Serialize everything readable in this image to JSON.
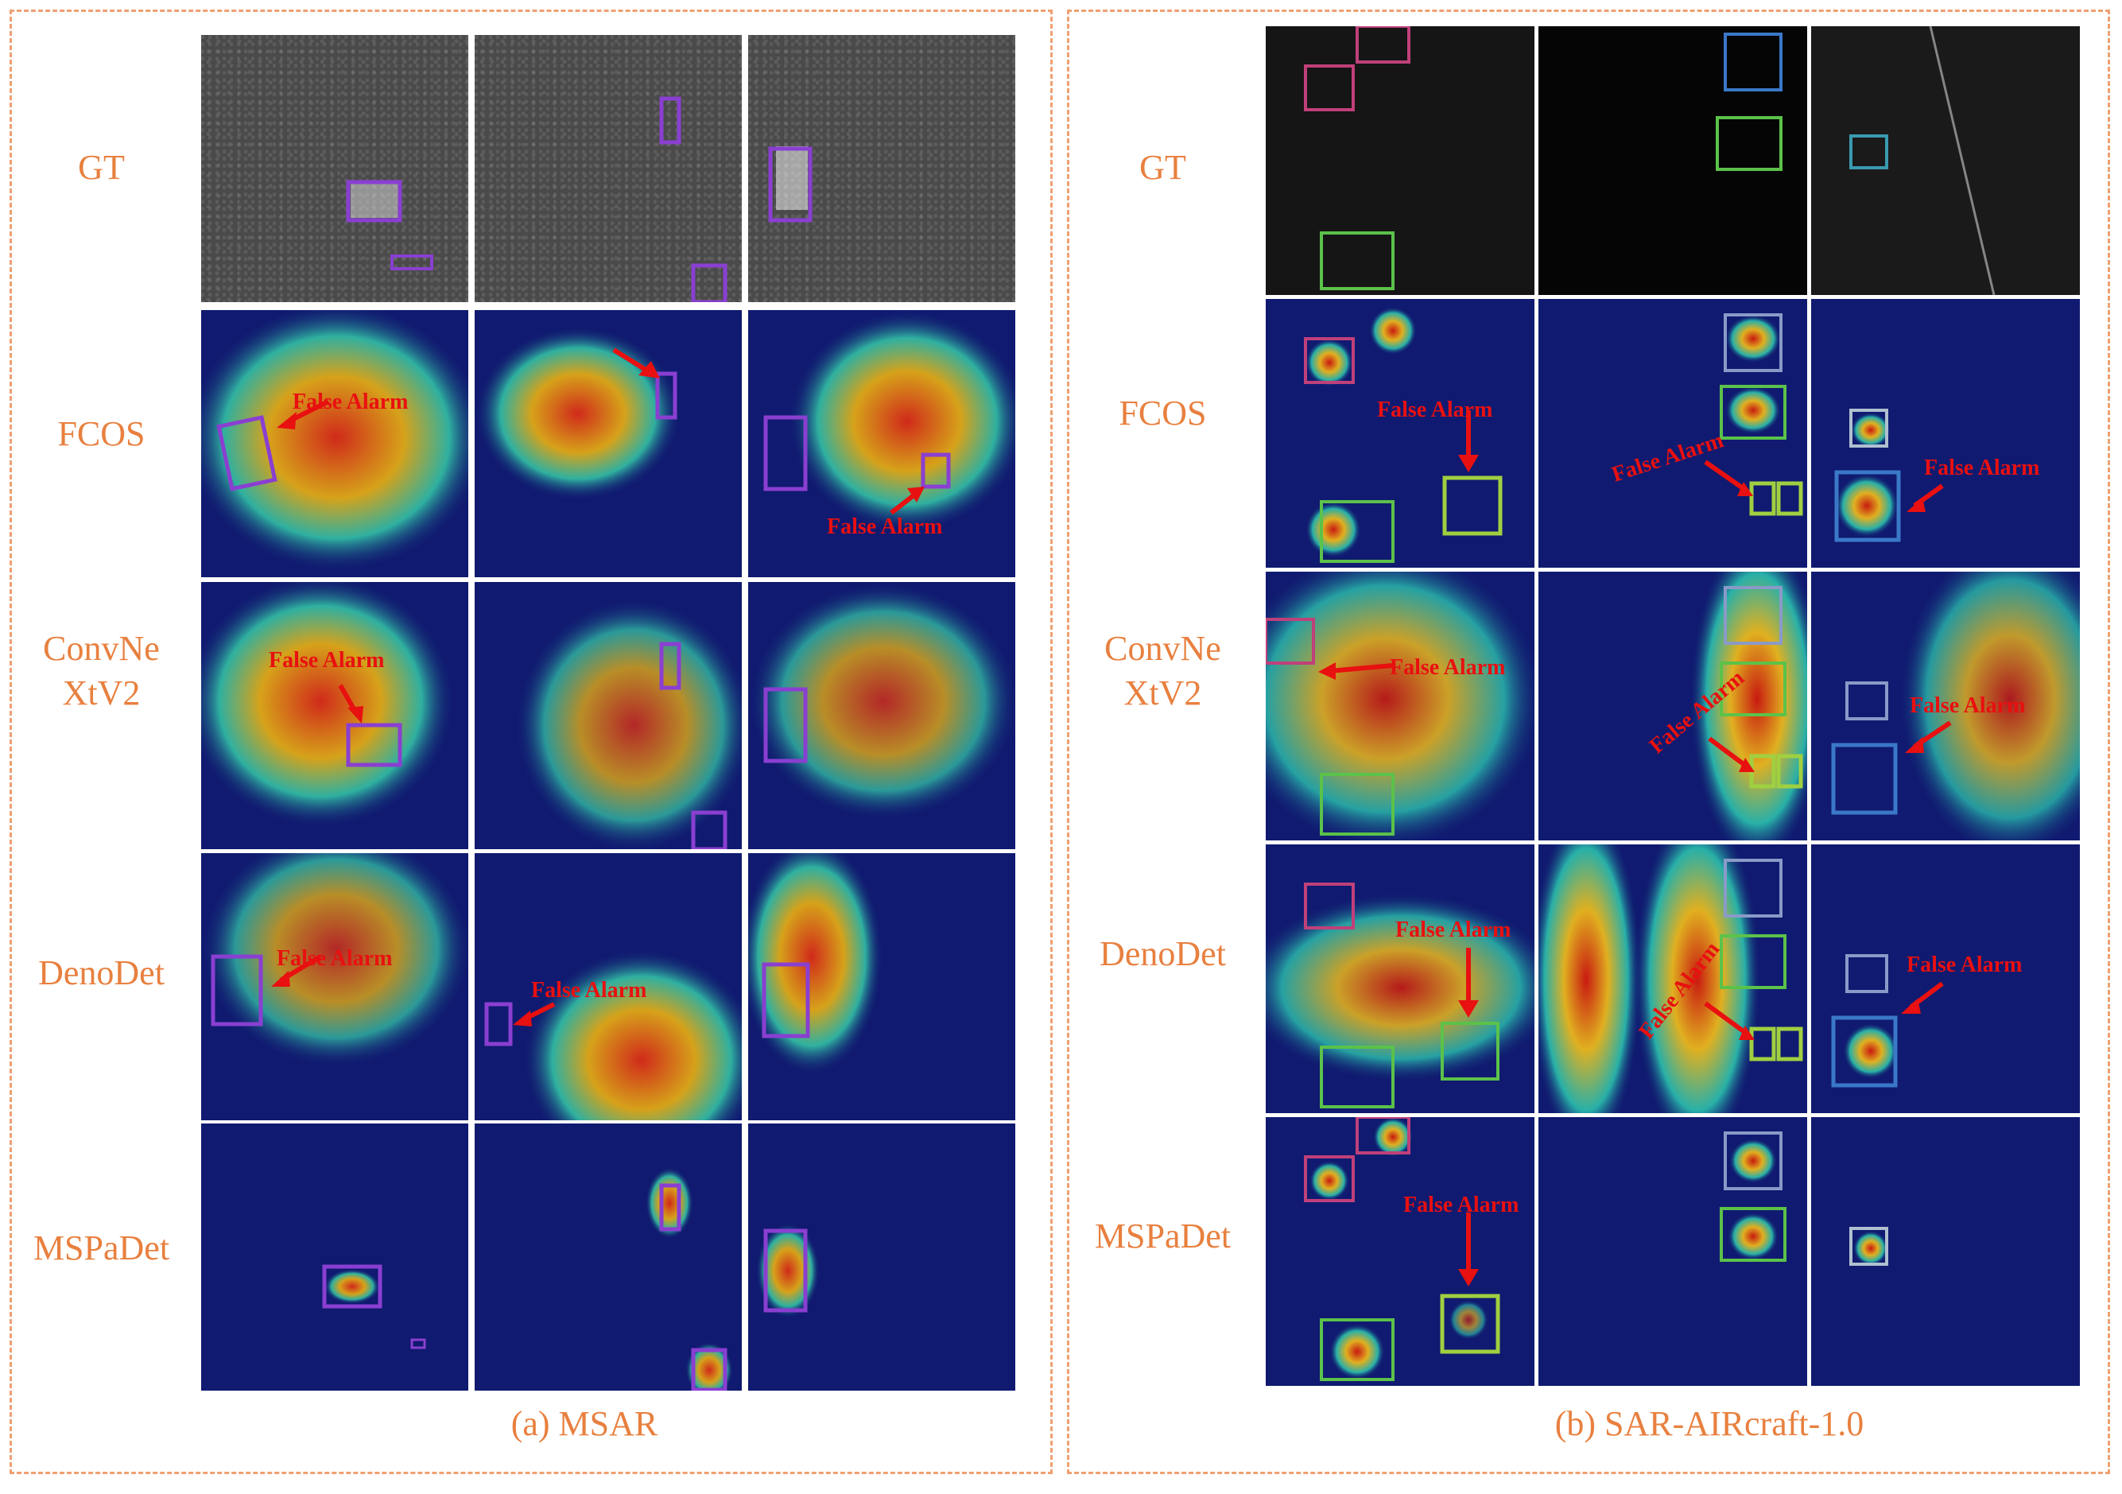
{
  "figure": {
    "panels": [
      {
        "id": "a",
        "caption": "(a) MSAR",
        "rows": [
          {
            "label": "GT",
            "alarms": []
          },
          {
            "label": "FCOS",
            "alarms": [
              "False Alarm",
              "False Alarm"
            ]
          },
          {
            "label": "ConvNe\nXtV2",
            "alarms": [
              "False Alarm"
            ]
          },
          {
            "label": "DenoDet",
            "alarms": [
              "False Alarm",
              "False Alarm"
            ]
          },
          {
            "label": "MSPaDet",
            "alarms": []
          }
        ]
      },
      {
        "id": "b",
        "caption": "(b) SAR-AIRcraft-1.0",
        "rows": [
          {
            "label": "GT",
            "alarms": []
          },
          {
            "label": "FCOS",
            "alarms": [
              "False Alarm",
              "False Alarm",
              "False Alarm"
            ]
          },
          {
            "label": "ConvNe\nXtV2",
            "alarms": [
              "False Alarm",
              "False Alarm",
              "False Alarm"
            ]
          },
          {
            "label": "DenoDet",
            "alarms": [
              "False Alarm",
              "False Alarm",
              "False Alarm"
            ]
          },
          {
            "label": "MSPaDet",
            "alarms": [
              "False Alarm"
            ]
          }
        ]
      }
    ],
    "colors": {
      "label": "#e8803f",
      "border": "#f0a070",
      "alarm": "#e81010",
      "box_purple": "#8a3fd1",
      "box_green": "#5bc24a",
      "box_blue": "#3a78c8",
      "box_pink": "#c0407a"
    }
  }
}
